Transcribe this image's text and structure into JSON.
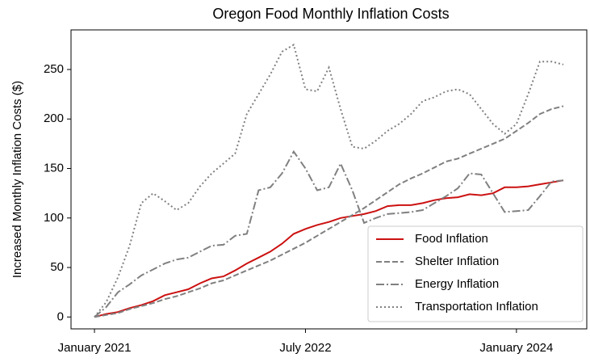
{
  "chart_data": {
    "type": "line",
    "title": "Oregon Food Monthly Inflation Costs",
    "y_label": "Increased Monthly Inflation Costs ($)",
    "x": [
      "2021-01",
      "2021-02",
      "2021-03",
      "2021-04",
      "2021-05",
      "2021-06",
      "2021-07",
      "2021-08",
      "2021-09",
      "2021-10",
      "2021-11",
      "2021-12",
      "2022-01",
      "2022-02",
      "2022-03",
      "2022-04",
      "2022-05",
      "2022-06",
      "2022-07",
      "2022-08",
      "2022-09",
      "2022-10",
      "2022-11",
      "2022-12",
      "2023-01",
      "2023-02",
      "2023-03",
      "2023-04",
      "2023-05",
      "2023-06",
      "2023-07",
      "2023-08",
      "2023-09",
      "2023-10",
      "2023-11",
      "2023-12",
      "2024-01",
      "2024-02",
      "2024-03",
      "2024-04",
      "2024-05"
    ],
    "series": [
      {
        "name": "Food Inflation",
        "color": "#cc1111",
        "dash": "solid",
        "values": [
          0,
          3,
          5,
          9,
          12,
          16,
          22,
          25,
          28,
          34,
          39,
          41,
          47,
          54,
          60,
          66,
          74,
          84,
          89,
          93,
          96,
          100,
          102,
          104,
          107,
          112,
          113,
          113,
          115,
          118,
          120,
          121,
          124,
          123,
          125,
          131,
          131,
          132,
          134,
          136,
          138
        ]
      },
      {
        "name": "Shelter Inflation",
        "color": "#808080",
        "dash": "dashed",
        "values": [
          0,
          2,
          4,
          8,
          11,
          14,
          18,
          21,
          25,
          29,
          34,
          37,
          42,
          47,
          52,
          57,
          63,
          69,
          75,
          82,
          89,
          96,
          103,
          110,
          118,
          126,
          134,
          140,
          145,
          151,
          157,
          160,
          165,
          170,
          175,
          180,
          188,
          196,
          205,
          210,
          213
        ]
      },
      {
        "name": "Energy Inflation",
        "color": "#808080",
        "dash": "dashdot",
        "values": [
          0,
          10,
          25,
          33,
          42,
          48,
          54,
          58,
          60,
          66,
          72,
          73,
          82,
          84,
          128,
          131,
          145,
          167,
          150,
          128,
          131,
          155,
          128,
          95,
          100,
          104,
          105,
          106,
          108,
          115,
          122,
          130,
          145,
          144,
          125,
          106,
          107,
          108,
          122,
          137,
          138
        ]
      },
      {
        "name": "Transportation Inflation",
        "color": "#808080",
        "dash": "dotted",
        "values": [
          0,
          15,
          40,
          72,
          115,
          125,
          117,
          108,
          115,
          132,
          145,
          155,
          165,
          205,
          225,
          245,
          268,
          275,
          230,
          228,
          252,
          210,
          172,
          170,
          178,
          188,
          195,
          205,
          218,
          222,
          228,
          230,
          225,
          210,
          195,
          185,
          195,
          225,
          258,
          258,
          255
        ]
      }
    ],
    "xlim": [
      "2020-11",
      "2024-07"
    ],
    "xticks": [
      {
        "value": "2021-01",
        "label": "January 2021"
      },
      {
        "value": "2022-07",
        "label": "July 2022"
      },
      {
        "value": "2024-01",
        "label": "January 2024"
      }
    ],
    "ylim": [
      -12,
      290
    ],
    "yticks": [
      0,
      50,
      100,
      150,
      200,
      250
    ],
    "legend": "lower right"
  }
}
